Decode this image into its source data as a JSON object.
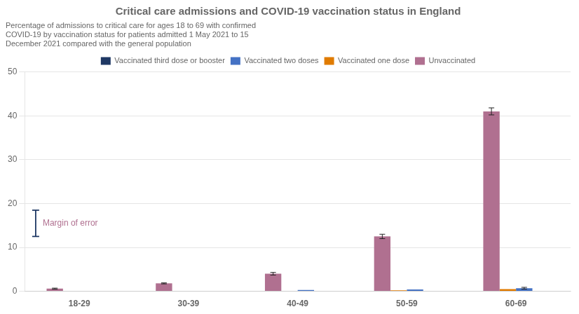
{
  "chart_data": {
    "type": "bar",
    "title": "Critical care admissions and COVID-19 vaccination status in England",
    "subtitle": [
      "Percentage of admissions to critical care for ages 18 to 69 with confirmed",
      "COVID-19 by vaccination status for patients admitted 1 May 2021 to 15",
      "December 2021 compared with the general population"
    ],
    "categories": [
      "18-29",
      "30-39",
      "40-49",
      "50-59",
      "60-69"
    ],
    "series": [
      {
        "name": "Unvaccinated",
        "color": "#b07090",
        "values": [
          0.6,
          1.8,
          4.0,
          12.5,
          41.0
        ],
        "errors": [
          0.12,
          0.12,
          0.3,
          0.5,
          0.8
        ]
      },
      {
        "name": "Vaccinated one dose",
        "color": "#e07b00",
        "values": [
          0.0,
          0.0,
          0.0,
          0.2,
          0.5
        ],
        "errors": [
          0.0,
          0.0,
          0.0,
          0.0,
          0.0
        ]
      },
      {
        "name": "Vaccinated two doses",
        "color": "#4472c4",
        "values": [
          0.0,
          0.0,
          0.3,
          0.4,
          0.7
        ],
        "errors": [
          0.0,
          0.0,
          0.0,
          0.0,
          0.2
        ]
      },
      {
        "name": "Vaccinated third dose or booster",
        "color": "#1f3864",
        "values": [
          0.0,
          0.0,
          0.0,
          0.0,
          0.0
        ],
        "errors": [
          0.0,
          0.0,
          0.0,
          0.0,
          0.0
        ]
      }
    ],
    "ylim": [
      0,
      50
    ],
    "yticks": [
      0,
      10,
      20,
      30,
      40,
      50
    ],
    "grid": true,
    "legend": "top",
    "annotation": {
      "text": "Margin of error",
      "color": "#b07090",
      "line_color": "#1f3864"
    }
  }
}
